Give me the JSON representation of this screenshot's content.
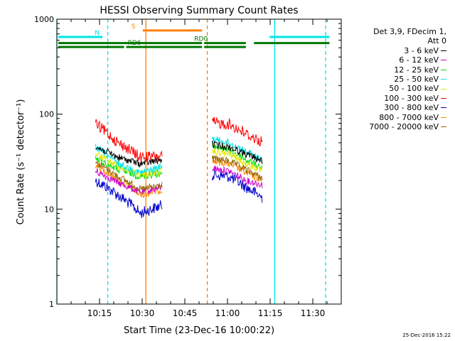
{
  "chart_data": {
    "type": "line",
    "title": "HESSI Observing Summary Count Rates",
    "xlabel": "Start Time (23-Dec-16 10:00:22)",
    "ylabel": "Count Rate (s⁻¹ detector⁻¹)",
    "yscale": "log",
    "ylim": [
      1,
      1000
    ],
    "xlim_minutes": [
      0,
      100
    ],
    "x_ticks": [
      "10:15",
      "10:30",
      "10:45",
      "11:00",
      "11:15",
      "11:30"
    ],
    "y_ticks": [
      "1",
      "10",
      "100",
      "1000"
    ],
    "legend_header": [
      "Det 3,9, FDecim 1,",
      "Att 0"
    ],
    "series": [
      {
        "name": "3 - 6 keV",
        "color": "#000000",
        "values1": [
          45,
          35,
          30,
          33
        ],
        "values2": [
          48,
          45,
          38,
          32
        ]
      },
      {
        "name": "6 - 12 keV",
        "color": "#cc00cc",
        "values1": [
          25,
          19,
          15,
          17
        ],
        "values2": [
          27,
          25,
          20,
          18
        ]
      },
      {
        "name": "12 - 25 keV",
        "color": "#00dd00",
        "values1": [
          34,
          26,
          22,
          24
        ],
        "values2": [
          46,
          42,
          33,
          27
        ]
      },
      {
        "name": "25 - 50 keV",
        "color": "#00e5e5",
        "values1": [
          45,
          30,
          24,
          28
        ],
        "values2": [
          55,
          50,
          40,
          33
        ]
      },
      {
        "name": "50 - 100 keV",
        "color": "#e5e500",
        "values1": [
          38,
          28,
          23,
          25
        ],
        "values2": [
          40,
          38,
          30,
          25
        ]
      },
      {
        "name": "100 - 300 keV",
        "color": "#ff0000",
        "values1": [
          78,
          50,
          35,
          36
        ],
        "values2": [
          82,
          78,
          62,
          50
        ]
      },
      {
        "name": "300 - 800 keV",
        "color": "#0000cc",
        "values1": [
          20,
          14,
          9,
          11
        ],
        "values2": [
          23,
          22,
          17,
          13
        ]
      },
      {
        "name": "800 - 7000 keV",
        "color": "#ff8800",
        "values1": [
          29,
          20,
          14,
          16
        ],
        "values2": [
          32,
          30,
          24,
          20
        ]
      },
      {
        "name": "7000 - 20000 keV",
        "color": "#996600",
        "values1": [
          31,
          22,
          16,
          18
        ],
        "values2": [
          34,
          32,
          26,
          21
        ]
      }
    ],
    "segments": {
      "seg1": {
        "start": 13.6,
        "end": 37.2
      },
      "seg2": {
        "start": 54.6,
        "end": 72.4
      }
    },
    "flags": [
      {
        "label": "N",
        "color": "#00e5e5",
        "level": 650,
        "ranges": [
          [
            0,
            16.3
          ],
          [
            74.3,
            96.1
          ]
        ]
      },
      {
        "label": "S",
        "color": "#ff7f00",
        "level": 760,
        "ranges": [
          [
            29.7,
            51.3
          ]
        ]
      },
      {
        "label": "RD0",
        "color": "#007700",
        "level": 560,
        "ranges": [
          [
            0,
            51.3
          ],
          [
            51.3,
            66.7
          ],
          [
            68.8,
            96.1
          ]
        ]
      },
      {
        "label": "RD6",
        "color": "#007700",
        "level": 510,
        "ranges": [
          [
            0,
            23.9
          ],
          [
            23.9,
            51.3
          ],
          [
            51.3,
            66.7
          ]
        ]
      }
    ],
    "vlines": [
      {
        "minute": 0,
        "color": "#00e5e5",
        "style": "solid"
      },
      {
        "minute": 17.9,
        "color": "#00e5e5",
        "style": "dashed"
      },
      {
        "minute": 31.3,
        "color": "#ff7f00",
        "style": "solid"
      },
      {
        "minute": 52.9,
        "color": "#ff7f00",
        "style": "dashed"
      },
      {
        "minute": 76.6,
        "color": "#00e5e5",
        "style": "solid"
      },
      {
        "minute": 94.5,
        "color": "#00e5e5",
        "style": "dashed"
      }
    ],
    "grid": false
  },
  "footer": {
    "timestamp": "25-Dec-2016 15:22"
  }
}
